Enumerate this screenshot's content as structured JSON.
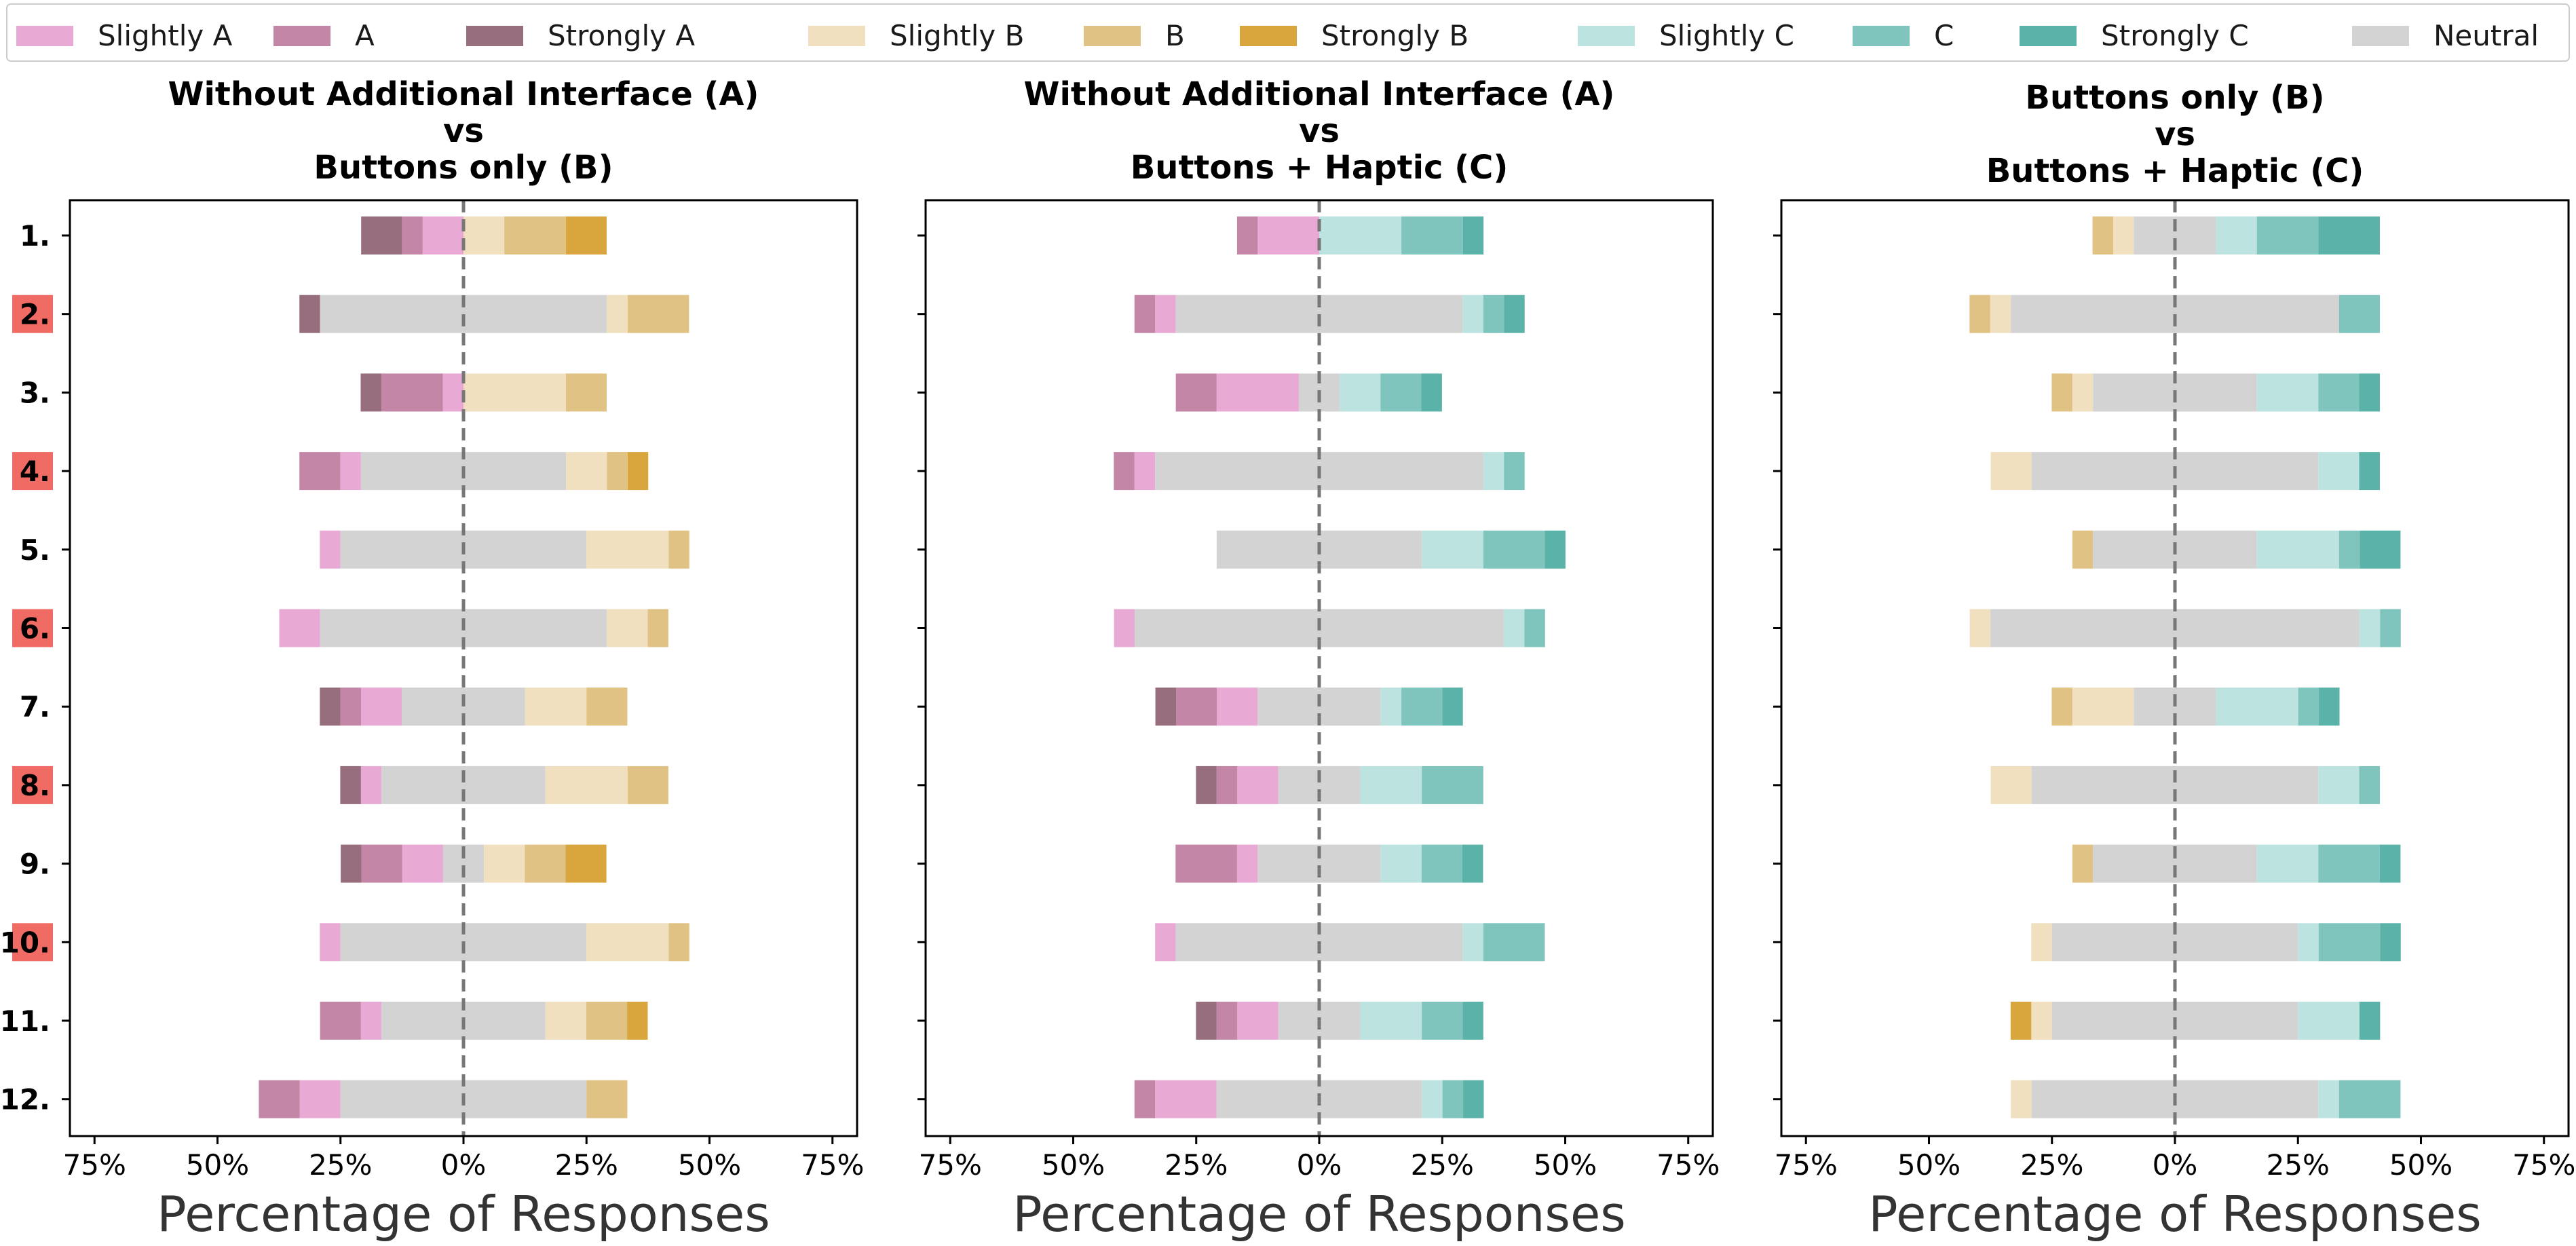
{
  "chart_data": {
    "type": "bar",
    "orientation": "horizontal-diverging-stacked",
    "legend": {
      "placement": "top",
      "entries": [
        {
          "label": "Slightly A",
          "color": "#e8a9d5"
        },
        {
          "label": "A",
          "color": "#c486a6"
        },
        {
          "label": "Strongly A",
          "color": "#976e7d"
        },
        {
          "label": "Slightly B",
          "color": "#f0e0c0"
        },
        {
          "label": "B",
          "color": "#e0c284"
        },
        {
          "label": "Strongly B",
          "color": "#d9a63e"
        },
        {
          "label": "Slightly C",
          "color": "#bde3e0"
        },
        {
          "label": "C",
          "color": "#7fc4bd"
        },
        {
          "label": "Strongly C",
          "color": "#5ab2a8"
        },
        {
          "label": "Neutral",
          "color": "#d3d3d3"
        }
      ]
    },
    "categories": [
      "1.",
      "2.",
      "3.",
      "4.",
      "5.",
      "6.",
      "7.",
      "8.",
      "9.",
      "10.",
      "11.",
      "12."
    ],
    "highlighted_categories": [
      "2.",
      "4.",
      "6.",
      "8.",
      "10."
    ],
    "highlight_color": "#ef6b63",
    "xlabel": "Percentage of Responses",
    "xlim": [
      -80,
      80
    ],
    "xticks": [
      -75,
      -50,
      -25,
      0,
      25,
      50,
      75
    ],
    "xtick_labels": [
      "75%",
      "50%",
      "25%",
      "0%",
      "25%",
      "50%",
      "75%"
    ],
    "subplots": [
      {
        "title": [
          "Without Additional Interface (A)",
          "vs",
          "Buttons only (B)"
        ],
        "left_keys": [
          "Strongly A",
          "A",
          "Slightly A"
        ],
        "right_keys": [
          "Slightly B",
          "B",
          "Strongly B"
        ],
        "rows": [
          {
            "strong_l": 8.3,
            "mid_l": 4.2,
            "slight_l": 8.3,
            "neutral": 0,
            "slight_r": 8.3,
            "mid_r": 12.5,
            "strong_r": 8.3
          },
          {
            "strong_l": 4.2,
            "mid_l": 0,
            "slight_l": 0,
            "neutral": 58.3,
            "slight_r": 4.2,
            "mid_r": 12.5,
            "strong_r": 0
          },
          {
            "strong_l": 4.2,
            "mid_l": 12.5,
            "slight_l": 4.2,
            "neutral": 0,
            "slight_r": 20.8,
            "mid_r": 8.3,
            "strong_r": 0
          },
          {
            "strong_l": 0,
            "mid_l": 8.3,
            "slight_l": 4.2,
            "neutral": 41.7,
            "slight_r": 8.3,
            "mid_r": 4.2,
            "strong_r": 4.2
          },
          {
            "strong_l": 0,
            "mid_l": 0,
            "slight_l": 4.2,
            "neutral": 50.0,
            "slight_r": 16.7,
            "mid_r": 4.2,
            "strong_r": 0
          },
          {
            "strong_l": 0,
            "mid_l": 0,
            "slight_l": 8.3,
            "neutral": 58.3,
            "slight_r": 8.3,
            "mid_r": 4.2,
            "strong_r": 0
          },
          {
            "strong_l": 4.2,
            "mid_l": 4.2,
            "slight_l": 8.3,
            "neutral": 25.0,
            "slight_r": 12.5,
            "mid_r": 8.3,
            "strong_r": 0
          },
          {
            "strong_l": 4.2,
            "mid_l": 0,
            "slight_l": 4.2,
            "neutral": 33.3,
            "slight_r": 16.7,
            "mid_r": 8.3,
            "strong_r": 0
          },
          {
            "strong_l": 4.2,
            "mid_l": 8.3,
            "slight_l": 8.3,
            "neutral": 8.3,
            "slight_r": 8.3,
            "mid_r": 8.3,
            "strong_r": 8.3
          },
          {
            "strong_l": 0,
            "mid_l": 0,
            "slight_l": 4.2,
            "neutral": 50.0,
            "slight_r": 16.7,
            "mid_r": 4.2,
            "strong_r": 0
          },
          {
            "strong_l": 0,
            "mid_l": 8.3,
            "slight_l": 4.2,
            "neutral": 33.3,
            "slight_r": 8.3,
            "mid_r": 8.3,
            "strong_r": 4.2
          },
          {
            "strong_l": 0,
            "mid_l": 8.3,
            "slight_l": 8.3,
            "neutral": 50.0,
            "slight_r": 0,
            "mid_r": 8.3,
            "strong_r": 0
          }
        ]
      },
      {
        "title": [
          "Without Additional Interface (A)",
          "vs",
          "Buttons + Haptic (C)"
        ],
        "left_keys": [
          "Strongly A",
          "A",
          "Slightly A"
        ],
        "right_keys": [
          "Slightly C",
          "C",
          "Strongly C"
        ],
        "rows": [
          {
            "strong_l": 0,
            "mid_l": 4.2,
            "slight_l": 12.5,
            "neutral": 0,
            "slight_r": 16.7,
            "mid_r": 12.5,
            "strong_r": 4.2
          },
          {
            "strong_l": 0,
            "mid_l": 4.2,
            "slight_l": 4.2,
            "neutral": 58.3,
            "slight_r": 4.2,
            "mid_r": 4.2,
            "strong_r": 4.2
          },
          {
            "strong_l": 0,
            "mid_l": 8.3,
            "slight_l": 16.7,
            "neutral": 8.3,
            "slight_r": 8.3,
            "mid_r": 8.3,
            "strong_r": 4.2
          },
          {
            "strong_l": 0,
            "mid_l": 4.2,
            "slight_l": 4.2,
            "neutral": 66.7,
            "slight_r": 4.2,
            "mid_r": 4.2,
            "strong_r": 0
          },
          {
            "strong_l": 0,
            "mid_l": 0,
            "slight_l": 0,
            "neutral": 41.7,
            "slight_r": 12.5,
            "mid_r": 12.5,
            "strong_r": 4.2
          },
          {
            "strong_l": 0,
            "mid_l": 0,
            "slight_l": 4.2,
            "neutral": 75.0,
            "slight_r": 4.2,
            "mid_r": 4.2,
            "strong_r": 0
          },
          {
            "strong_l": 4.2,
            "mid_l": 8.3,
            "slight_l": 8.3,
            "neutral": 25.0,
            "slight_r": 4.2,
            "mid_r": 8.3,
            "strong_r": 4.2
          },
          {
            "strong_l": 4.2,
            "mid_l": 4.2,
            "slight_l": 8.3,
            "neutral": 16.7,
            "slight_r": 12.5,
            "mid_r": 12.5,
            "strong_r": 0
          },
          {
            "strong_l": 0,
            "mid_l": 12.5,
            "slight_l": 4.2,
            "neutral": 25.0,
            "slight_r": 8.3,
            "mid_r": 8.3,
            "strong_r": 4.2
          },
          {
            "strong_l": 0,
            "mid_l": 0,
            "slight_l": 4.2,
            "neutral": 58.3,
            "slight_r": 4.2,
            "mid_r": 12.5,
            "strong_r": 0
          },
          {
            "strong_l": 4.2,
            "mid_l": 4.2,
            "slight_l": 8.3,
            "neutral": 16.7,
            "slight_r": 12.5,
            "mid_r": 8.3,
            "strong_r": 4.2
          },
          {
            "strong_l": 0,
            "mid_l": 4.2,
            "slight_l": 12.5,
            "neutral": 41.7,
            "slight_r": 4.2,
            "mid_r": 4.2,
            "strong_r": 4.2
          }
        ]
      },
      {
        "title": [
          "Buttons only (B)",
          "vs",
          "Buttons + Haptic (C)"
        ],
        "left_keys": [
          "Strongly B",
          "B",
          "Slightly B"
        ],
        "right_keys": [
          "Slightly C",
          "C",
          "Strongly C"
        ],
        "rows": [
          {
            "strong_l": 0,
            "mid_l": 4.2,
            "slight_l": 4.2,
            "neutral": 16.7,
            "slight_r": 8.3,
            "mid_r": 12.5,
            "strong_r": 12.5
          },
          {
            "strong_l": 0,
            "mid_l": 4.2,
            "slight_l": 4.2,
            "neutral": 66.7,
            "slight_r": 0,
            "mid_r": 8.3,
            "strong_r": 0
          },
          {
            "strong_l": 0,
            "mid_l": 4.2,
            "slight_l": 4.2,
            "neutral": 33.3,
            "slight_r": 12.5,
            "mid_r": 8.3,
            "strong_r": 4.2
          },
          {
            "strong_l": 0,
            "mid_l": 0,
            "slight_l": 8.3,
            "neutral": 58.3,
            "slight_r": 8.3,
            "mid_r": 0,
            "strong_r": 4.2
          },
          {
            "strong_l": 0,
            "mid_l": 4.2,
            "slight_l": 0,
            "neutral": 33.3,
            "slight_r": 16.7,
            "mid_r": 4.2,
            "strong_r": 8.3
          },
          {
            "strong_l": 0,
            "mid_l": 0,
            "slight_l": 4.2,
            "neutral": 75.0,
            "slight_r": 4.2,
            "mid_r": 4.2,
            "strong_r": 0
          },
          {
            "strong_l": 0,
            "mid_l": 4.2,
            "slight_l": 12.5,
            "neutral": 16.7,
            "slight_r": 16.7,
            "mid_r": 4.2,
            "strong_r": 4.2
          },
          {
            "strong_l": 0,
            "mid_l": 0,
            "slight_l": 8.3,
            "neutral": 58.3,
            "slight_r": 8.3,
            "mid_r": 4.2,
            "strong_r": 0
          },
          {
            "strong_l": 0,
            "mid_l": 4.2,
            "slight_l": 0,
            "neutral": 33.3,
            "slight_r": 12.5,
            "mid_r": 12.5,
            "strong_r": 4.2
          },
          {
            "strong_l": 0,
            "mid_l": 0,
            "slight_l": 4.2,
            "neutral": 50.0,
            "slight_r": 4.2,
            "mid_r": 12.5,
            "strong_r": 4.2
          },
          {
            "strong_l": 4.2,
            "mid_l": 0,
            "slight_l": 4.2,
            "neutral": 50.0,
            "slight_r": 12.5,
            "mid_r": 0,
            "strong_r": 4.2
          },
          {
            "strong_l": 0,
            "mid_l": 0,
            "slight_l": 4.2,
            "neutral": 58.3,
            "slight_r": 4.2,
            "mid_r": 12.5,
            "strong_r": 0
          }
        ]
      }
    ]
  }
}
